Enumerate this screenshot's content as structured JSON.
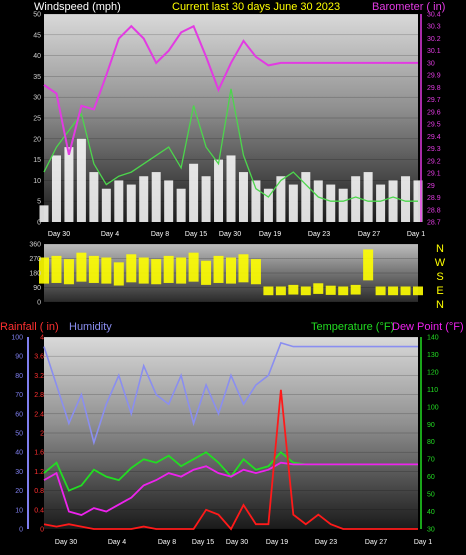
{
  "header": {
    "left": "Windspeed (mph)",
    "center": "Current last 30 days June 30 2023",
    "right": "Barometer ( in)"
  },
  "legend": {
    "rainfall": "Rainfall ( in)",
    "humidity": "Humidity",
    "temperature": "Temperature (°F)",
    "dewpoint": "Dew Point (°F)"
  },
  "x_labels": [
    "Day 30",
    "Day 4",
    "Day 8",
    "Day 15",
    "Day 30",
    "Day 19",
    "Day 23",
    "Day 27",
    "Day 1"
  ],
  "compass": [
    "N",
    "W",
    "S",
    "E",
    "N"
  ],
  "axes": {
    "wind_ticks": [
      "0",
      "5",
      "10",
      "15",
      "20",
      "25",
      "30",
      "35",
      "40",
      "45",
      "50"
    ],
    "baro_ticks": [
      "28.7",
      "28.8",
      "28.9",
      "29",
      "29.1",
      "29.2",
      "29.3",
      "29.4",
      "29.5",
      "29.6",
      "29.7",
      "29.8",
      "29.9",
      "30",
      "30.1",
      "30.2",
      "30.3",
      "30.4"
    ],
    "dir_ticks": [
      "0",
      "90",
      "180",
      "270",
      "360"
    ],
    "humidity_ticks": [
      "0",
      "10",
      "20",
      "30",
      "40",
      "50",
      "60",
      "70",
      "80",
      "90",
      "100"
    ],
    "rain_ticks": [
      "0",
      "0.4",
      "0.8",
      "1.2",
      "1.6",
      "2",
      "2.4",
      "2.8",
      "3.2",
      "3.6",
      "4"
    ],
    "temp_ticks": [
      "30",
      "40",
      "50",
      "60",
      "70",
      "80",
      "90",
      "100",
      "110",
      "120",
      "130",
      "140"
    ]
  },
  "colors": {
    "wind": "#ffffff",
    "gust": "#4cd64c",
    "baro": "#e23be2",
    "dir": "#ffff00",
    "rain": "#ff1a1a",
    "humidity": "#8a8ef0",
    "temp": "#22dd22",
    "dew": "#ee22ee",
    "wind_axis": "#cfcfcf",
    "baro_axis": "#e23be2",
    "humidity_axis": "#7f7fef",
    "rain_axis": "#ff3030",
    "temp_axis": "#22dd22",
    "title": "#ffff00"
  },
  "chart_data": [
    {
      "type": "area",
      "ylim": [
        0,
        50
      ],
      "series": [
        {
          "name": "Windspeed (mph)",
          "x": [
            0,
            1,
            2,
            3,
            4,
            5,
            6,
            7,
            8,
            9,
            10,
            11,
            12,
            13,
            14,
            15,
            16,
            17,
            18,
            19,
            20,
            21,
            22,
            23,
            24,
            25,
            26,
            27,
            28,
            29,
            30
          ],
          "values": [
            4,
            16,
            18,
            20,
            12,
            8,
            10,
            9,
            11,
            12,
            10,
            8,
            14,
            11,
            15,
            16,
            12,
            10,
            8,
            11,
            9,
            12,
            10,
            9,
            8,
            11,
            12,
            9,
            10,
            11,
            10
          ]
        },
        {
          "name": "Gust",
          "x": [
            0,
            1,
            2,
            3,
            4,
            5,
            6,
            7,
            8,
            9,
            10,
            11,
            12,
            13,
            14,
            15,
            16,
            17,
            18,
            19,
            20,
            21,
            22,
            23,
            24,
            25,
            26,
            27,
            28,
            29,
            30
          ],
          "values": [
            12,
            18,
            22,
            26,
            14,
            9,
            11,
            12,
            14,
            16,
            18,
            13,
            28,
            18,
            14,
            32,
            16,
            8,
            6,
            10,
            12,
            9,
            6,
            5,
            5,
            6,
            5,
            5,
            6,
            5,
            5
          ]
        }
      ]
    },
    {
      "type": "line",
      "ylim": [
        28.7,
        30.4
      ],
      "series": [
        {
          "name": "Barometer ( in)",
          "x": [
            0,
            1,
            2,
            3,
            4,
            5,
            6,
            7,
            8,
            9,
            10,
            11,
            12,
            13,
            14,
            15,
            16,
            17,
            18,
            19,
            20,
            21,
            22,
            23,
            24,
            25,
            26,
            27,
            28,
            29,
            30
          ],
          "values": [
            29.82,
            29.75,
            29.25,
            29.65,
            29.62,
            29.9,
            30.2,
            30.3,
            30.2,
            30.0,
            30.1,
            30.25,
            30.3,
            30.05,
            29.78,
            30.0,
            30.18,
            30.05,
            29.98,
            30.0,
            30.0,
            30.0,
            30.0,
            30.0,
            30.0,
            30.0,
            30.0,
            30.0,
            30.0,
            30.0,
            30.0
          ]
        }
      ]
    },
    {
      "type": "scatter",
      "ylim": [
        0,
        360
      ],
      "series": [
        {
          "name": "Wind direction",
          "x": [
            0,
            1,
            2,
            3,
            4,
            5,
            6,
            7,
            8,
            9,
            10,
            11,
            12,
            13,
            14,
            15,
            16,
            17,
            18,
            19,
            20,
            21,
            22,
            23,
            24,
            25,
            26,
            27,
            28,
            29,
            30
          ],
          "values": [
            270,
            280,
            260,
            300,
            280,
            270,
            240,
            290,
            270,
            260,
            280,
            270,
            300,
            250,
            280,
            270,
            290,
            260,
            90,
            90,
            100,
            90,
            110,
            95,
            90,
            100,
            320,
            90,
            90,
            90,
            90
          ]
        }
      ]
    },
    {
      "type": "line",
      "ylim_humidity": [
        0,
        100
      ],
      "ylim_rain": [
        0,
        4
      ],
      "ylim_temp": [
        30,
        140
      ],
      "series": [
        {
          "name": "Humidity",
          "x": [
            0,
            1,
            2,
            3,
            4,
            5,
            6,
            7,
            8,
            9,
            10,
            11,
            12,
            13,
            14,
            15,
            16,
            17,
            18,
            19,
            20,
            21,
            22,
            23,
            24,
            25,
            26,
            27,
            28,
            29,
            30
          ],
          "values": [
            95,
            75,
            55,
            70,
            45,
            65,
            80,
            60,
            85,
            70,
            65,
            80,
            55,
            75,
            60,
            80,
            65,
            75,
            80,
            97,
            95,
            95,
            95,
            95,
            95,
            95,
            95,
            95,
            95,
            95,
            95
          ]
        },
        {
          "name": "Rainfall ( in)",
          "x": [
            0,
            1,
            2,
            3,
            4,
            5,
            6,
            7,
            8,
            9,
            10,
            11,
            12,
            13,
            14,
            15,
            16,
            17,
            18,
            19,
            20,
            21,
            22,
            23,
            24,
            25,
            26,
            27,
            28,
            29,
            30
          ],
          "values": [
            0.1,
            0.05,
            0.1,
            0.05,
            0,
            0,
            0,
            0,
            0.05,
            0,
            0,
            0,
            0,
            0.4,
            0.3,
            0,
            0.5,
            0.1,
            0.1,
            2.9,
            0.3,
            0.1,
            0.3,
            0.1,
            0,
            0,
            0,
            0,
            0,
            0,
            0
          ]
        },
        {
          "name": "Temperature (°F)",
          "x": [
            0,
            1,
            2,
            3,
            4,
            5,
            6,
            7,
            8,
            9,
            10,
            11,
            12,
            13,
            14,
            15,
            16,
            17,
            18,
            19,
            20,
            21,
            22,
            23,
            24,
            25,
            26,
            27,
            28,
            29,
            30
          ],
          "values": [
            62,
            68,
            52,
            55,
            64,
            60,
            58,
            65,
            70,
            68,
            72,
            66,
            70,
            74,
            68,
            60,
            70,
            64,
            66,
            74,
            68,
            67,
            67,
            67,
            67,
            67,
            67,
            67,
            67,
            67,
            67
          ]
        },
        {
          "name": "Dew Point (°F)",
          "x": [
            0,
            1,
            2,
            3,
            4,
            5,
            6,
            7,
            8,
            9,
            10,
            11,
            12,
            13,
            14,
            15,
            16,
            17,
            18,
            19,
            20,
            21,
            22,
            23,
            24,
            25,
            26,
            27,
            28,
            29,
            30
          ],
          "values": [
            58,
            62,
            40,
            38,
            42,
            40,
            44,
            48,
            55,
            58,
            62,
            60,
            64,
            66,
            62,
            60,
            64,
            62,
            64,
            68,
            67,
            67,
            67,
            67,
            67,
            67,
            67,
            67,
            67,
            67,
            67
          ]
        }
      ]
    }
  ]
}
